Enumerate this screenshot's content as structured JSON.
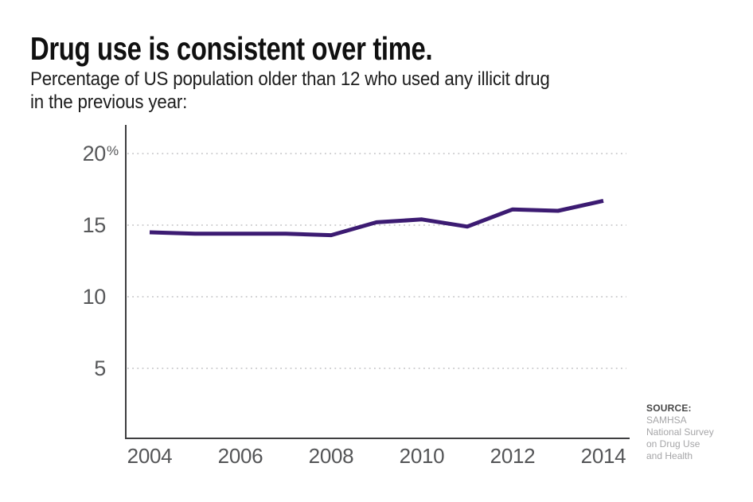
{
  "header": {
    "title": "Drug use is consistent over time.",
    "subtitle_lines": [
      "Percentage of US population older than 12 who used any illicit drug",
      "in the previous year:"
    ]
  },
  "source": {
    "label": "SOURCE:",
    "lines": [
      "SAMHSA",
      "National Survey",
      "on Drug Use",
      "and Health"
    ]
  },
  "chart_data": {
    "type": "line",
    "title": "Drug use is consistent over time.",
    "subtitle": "Percentage of US population older than 12 who used any illicit drug in the previous year:",
    "x": [
      2004,
      2005,
      2006,
      2007,
      2008,
      2009,
      2010,
      2011,
      2012,
      2013,
      2014
    ],
    "series": [
      {
        "name": "Any illicit drug use in previous year (%)",
        "values": [
          14.5,
          14.4,
          14.4,
          14.4,
          14.3,
          15.2,
          15.4,
          14.9,
          16.1,
          16.0,
          16.7
        ],
        "color": "#3c1b72"
      }
    ],
    "xticks": [
      "2004",
      "2006",
      "2008",
      "2010",
      "2012",
      "2014"
    ],
    "yticks": [
      {
        "value": 5,
        "label": "5",
        "suffix": ""
      },
      {
        "value": 10,
        "label": "10",
        "suffix": ""
      },
      {
        "value": 15,
        "label": "15",
        "suffix": ""
      },
      {
        "value": 20,
        "label": "20",
        "suffix": "%"
      }
    ],
    "ylim": [
      0,
      22
    ],
    "xlabel": "",
    "ylabel": "",
    "grid": "horizontal-dotted",
    "legend": "none",
    "source": "SOURCE: SAMHSA National Survey on Drug Use and Health",
    "colors": {
      "line": "#3c1b72",
      "grid": "#c9c9cb",
      "axis": "#3e3e40",
      "tick_text": "#57585a"
    }
  }
}
